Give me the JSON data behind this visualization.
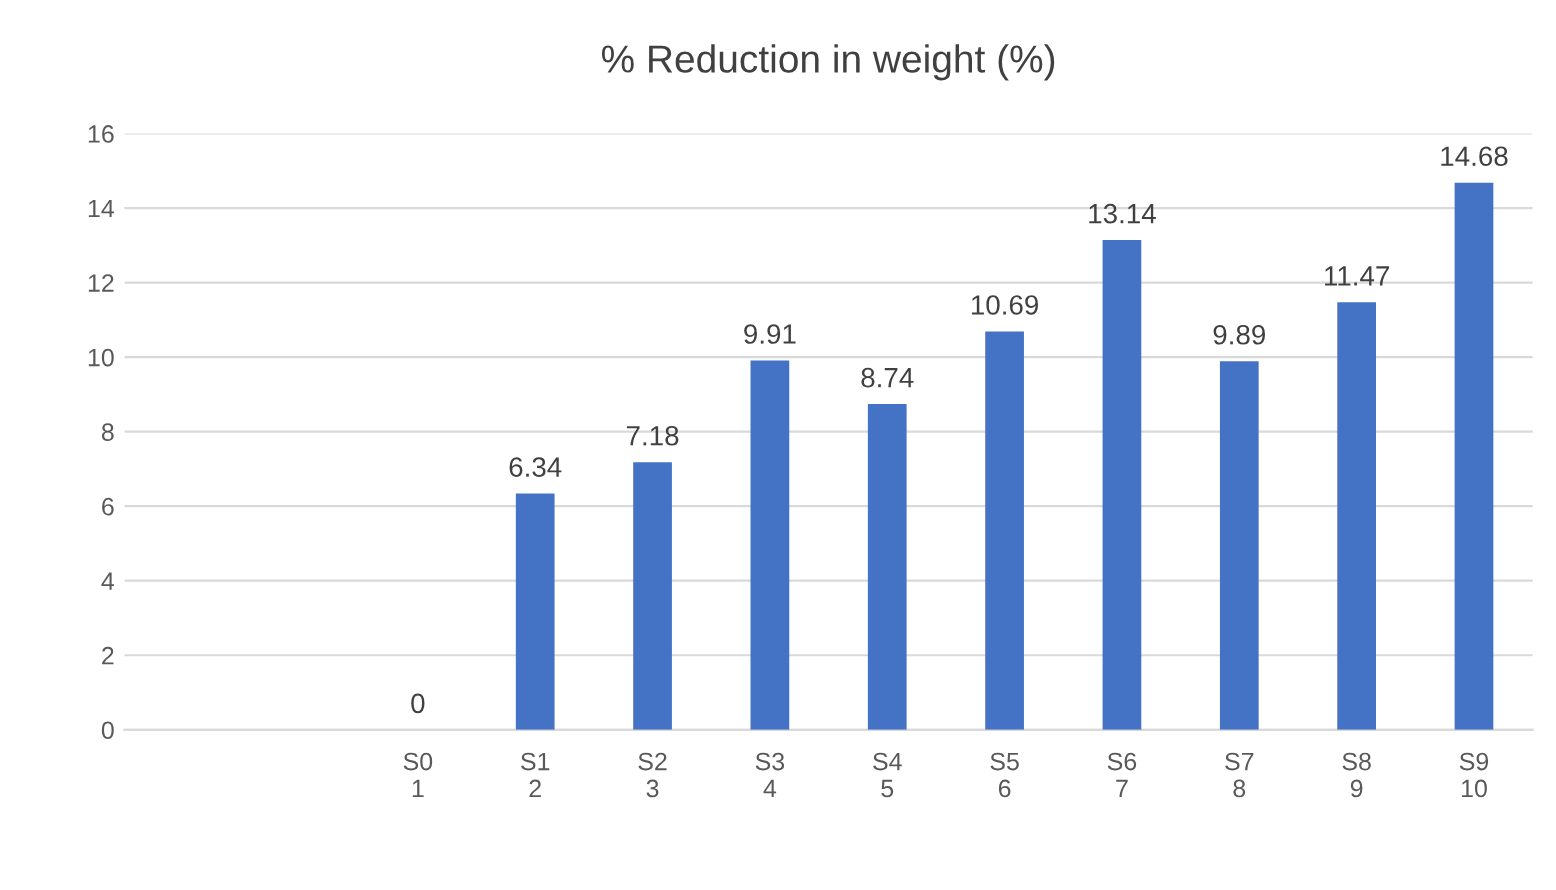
{
  "chart_data": {
    "type": "bar",
    "title": "% Reduction in weight (%)",
    "categories": [
      null,
      null,
      "S0\n1",
      "S1\n2",
      "S2\n3",
      "S3\n4",
      "S4\n5",
      "S5\n6",
      "S6\n7",
      "S7\n8",
      "S8\n9",
      "S9\n10"
    ],
    "values": [
      null,
      null,
      0,
      6.34,
      7.18,
      9.91,
      8.74,
      10.69,
      13.14,
      9.89,
      11.47,
      14.68
    ],
    "color": "#4472c4",
    "ylim": [
      0,
      16
    ],
    "yticks": [
      0,
      2,
      4,
      6,
      8,
      10,
      12,
      14,
      16
    ],
    "grid": "y",
    "data_labels": true
  }
}
